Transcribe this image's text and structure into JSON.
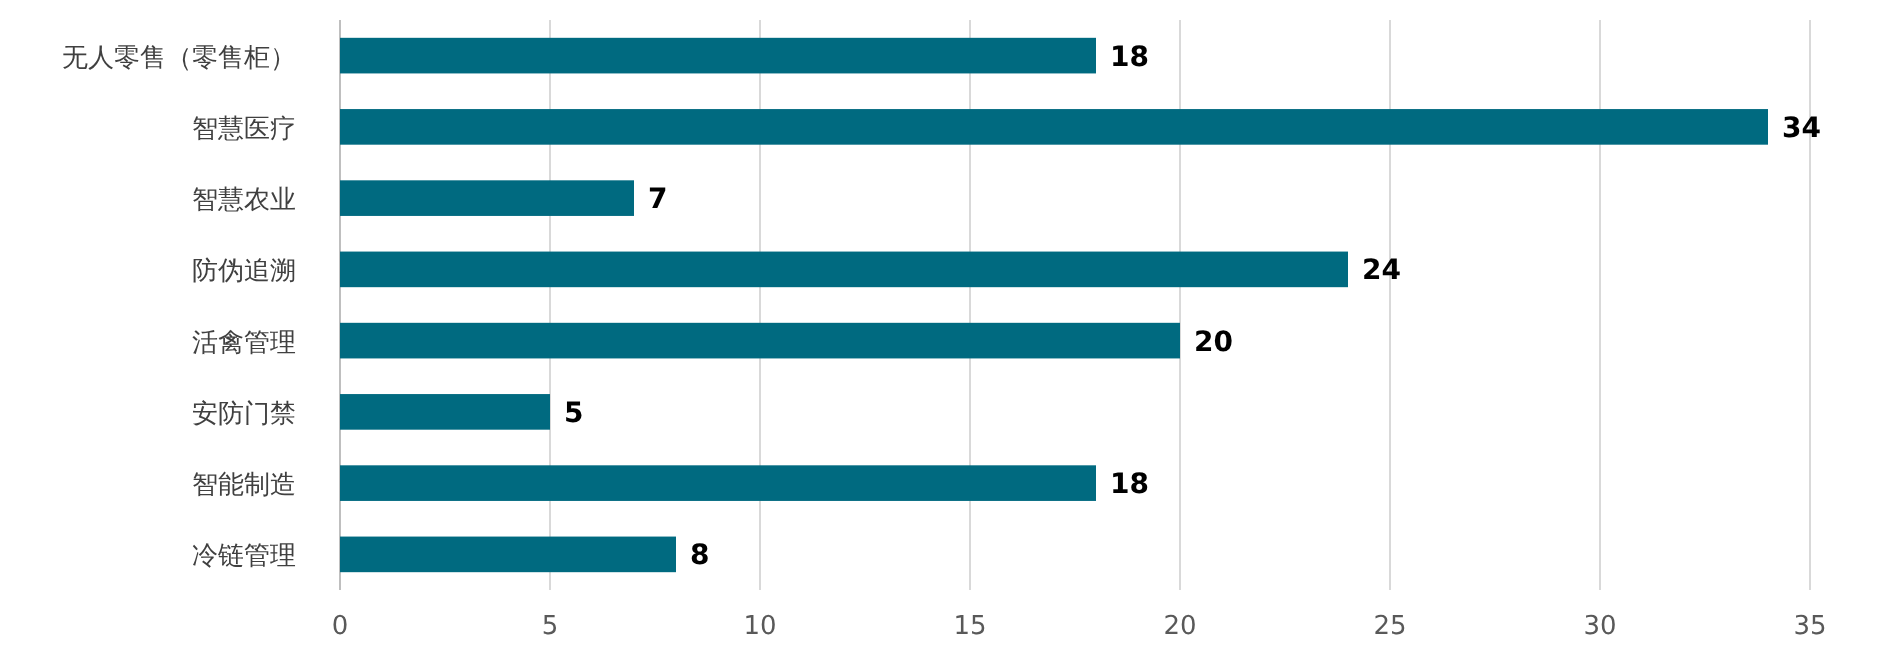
{
  "chart_data": {
    "type": "bar",
    "orientation": "horizontal",
    "categories": [
      "无人零售（零售柜）",
      "智慧医疗",
      "智慧农业",
      "防伪追溯",
      "活禽管理",
      "安防门禁",
      "智能制造",
      "冷链管理"
    ],
    "values": [
      18,
      34,
      7,
      24,
      20,
      5,
      18,
      8
    ],
    "color": "#006a80",
    "xlim": [
      0,
      35
    ],
    "xticks": [
      0,
      5,
      10,
      15,
      20,
      25,
      30,
      35
    ],
    "grid": "x",
    "data_labels": true
  }
}
